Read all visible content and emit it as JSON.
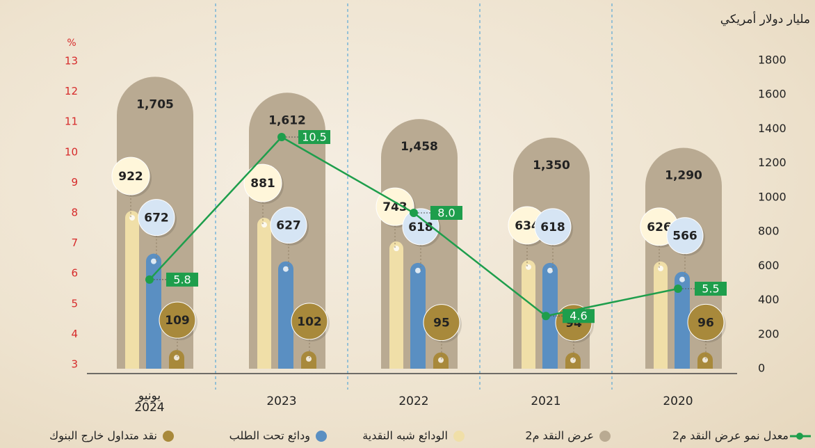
{
  "chart_data": {
    "type": "bar",
    "y_axis_label": "مليار دولار أمريكي",
    "y2_axis_label": "%",
    "categories": [
      "يونيو\n2024",
      "2023",
      "2022",
      "2021",
      "2020"
    ],
    "ylim": [
      0,
      1800
    ],
    "yticks": [
      0,
      200,
      400,
      600,
      800,
      1000,
      1200,
      1400,
      1600,
      1800
    ],
    "y2lim": [
      3,
      13
    ],
    "y2ticks": [
      3,
      4,
      5,
      6,
      7,
      8,
      9,
      10,
      11,
      12,
      13
    ],
    "series": [
      {
        "name": "عرض النقد م2",
        "color": "#b9aa92",
        "values": [
          1705,
          1612,
          1458,
          1350,
          1290
        ],
        "value_labels": [
          "1,705",
          "1,612",
          "1,458",
          "1,350",
          "1,290"
        ]
      },
      {
        "name": "الودائع شبه النقدية",
        "color": "#f0dfa8",
        "values": [
          922,
          881,
          743,
          634,
          626
        ]
      },
      {
        "name": "ودائع تحت الطلب",
        "color": "#5a8fc2",
        "values": [
          672,
          627,
          618,
          618,
          566
        ]
      },
      {
        "name": "نقد متداول خارج البنوك",
        "color": "#a8893b",
        "values": [
          109,
          102,
          95,
          94,
          96
        ]
      },
      {
        "name": "معدل نمو عرض النقد م2",
        "color": "#1e9e4c",
        "type": "line",
        "axis": "y2",
        "values": [
          5.8,
          10.5,
          8.0,
          4.6,
          5.5
        ],
        "value_labels": [
          "5.8",
          "10.5",
          "8.0",
          "4.6",
          "5.5"
        ]
      }
    ]
  }
}
